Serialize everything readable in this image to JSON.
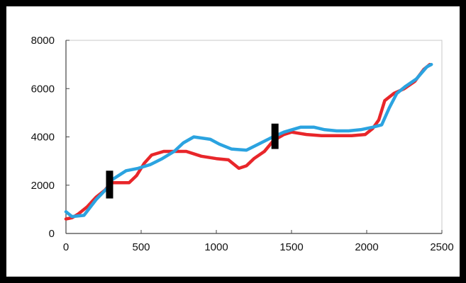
{
  "chart_data": {
    "type": "line",
    "title": "",
    "xlabel": "",
    "ylabel": "",
    "xlim": [
      0,
      2500
    ],
    "ylim": [
      0,
      8000
    ],
    "x_ticks": [
      "0",
      "500",
      "1000",
      "1500",
      "2000",
      "2500"
    ],
    "y_ticks": [
      "0",
      "2000",
      "4000",
      "6000",
      "8000"
    ],
    "y_tick_values": [
      0,
      2000,
      4000,
      6000,
      8000
    ],
    "x_tick_values": [
      0,
      500,
      1000,
      1500,
      2000,
      2500
    ],
    "grid": false,
    "legend": "none",
    "series": [
      {
        "color": "#e8262a",
        "points": [
          [
            0,
            600
          ],
          [
            40,
            650
          ],
          [
            80,
            800
          ],
          [
            140,
            1100
          ],
          [
            200,
            1500
          ],
          [
            260,
            1800
          ],
          [
            300,
            2100
          ],
          [
            420,
            2100
          ],
          [
            470,
            2400
          ],
          [
            520,
            2900
          ],
          [
            570,
            3250
          ],
          [
            650,
            3400
          ],
          [
            800,
            3400
          ],
          [
            900,
            3200
          ],
          [
            1000,
            3100
          ],
          [
            1080,
            3050
          ],
          [
            1150,
            2700
          ],
          [
            1200,
            2800
          ],
          [
            1250,
            3100
          ],
          [
            1320,
            3400
          ],
          [
            1380,
            3850
          ],
          [
            1450,
            4100
          ],
          [
            1500,
            4200
          ],
          [
            1600,
            4100
          ],
          [
            1700,
            4050
          ],
          [
            1800,
            4050
          ],
          [
            1900,
            4050
          ],
          [
            1990,
            4100
          ],
          [
            2040,
            4350
          ],
          [
            2080,
            4700
          ],
          [
            2120,
            5500
          ],
          [
            2180,
            5800
          ],
          [
            2250,
            6000
          ],
          [
            2320,
            6300
          ],
          [
            2380,
            6800
          ],
          [
            2420,
            7000
          ]
        ]
      },
      {
        "color": "#2ba3e0",
        "points": [
          [
            0,
            900
          ],
          [
            40,
            700
          ],
          [
            120,
            750
          ],
          [
            200,
            1400
          ],
          [
            270,
            1850
          ],
          [
            300,
            2200
          ],
          [
            400,
            2600
          ],
          [
            480,
            2700
          ],
          [
            560,
            2850
          ],
          [
            640,
            3100
          ],
          [
            720,
            3400
          ],
          [
            780,
            3750
          ],
          [
            850,
            4000
          ],
          [
            960,
            3900
          ],
          [
            1020,
            3700
          ],
          [
            1100,
            3500
          ],
          [
            1200,
            3450
          ],
          [
            1280,
            3700
          ],
          [
            1360,
            3950
          ],
          [
            1450,
            4200
          ],
          [
            1560,
            4400
          ],
          [
            1650,
            4400
          ],
          [
            1720,
            4300
          ],
          [
            1800,
            4250
          ],
          [
            1880,
            4250
          ],
          [
            1960,
            4300
          ],
          [
            2040,
            4400
          ],
          [
            2100,
            4500
          ],
          [
            2150,
            5200
          ],
          [
            2200,
            5800
          ],
          [
            2260,
            6100
          ],
          [
            2330,
            6400
          ],
          [
            2400,
            6900
          ],
          [
            2430,
            7000
          ]
        ]
      }
    ],
    "markers": [
      {
        "x": 290,
        "y_from": 1450,
        "y_to": 2600,
        "color": "#000000"
      },
      {
        "x": 1390,
        "y_from": 3500,
        "y_to": 4550,
        "color": "#000000"
      }
    ]
  }
}
